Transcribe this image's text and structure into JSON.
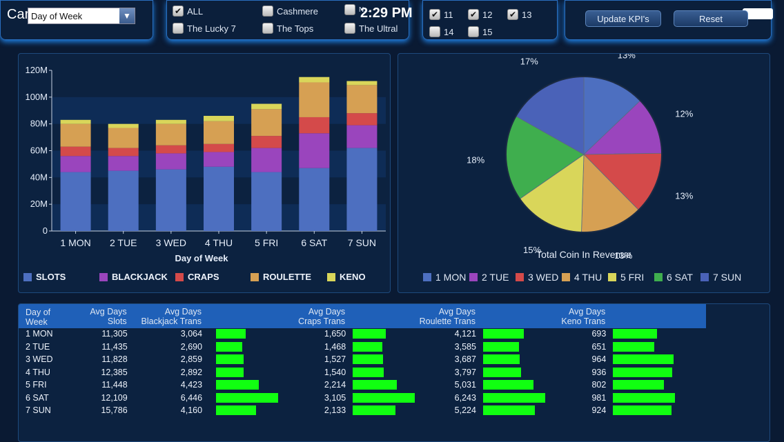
{
  "status_bar": {
    "carrier": "Carrier",
    "time": "2:29 PM"
  },
  "filters": {
    "group_by": {
      "selected": "Day of Week"
    },
    "games": [
      {
        "label": "ALL",
        "checked": true
      },
      {
        "label": "Cashmere",
        "checked": false
      },
      {
        "label": "N...",
        "checked": false
      },
      {
        "label": "The Lucky 7",
        "checked": false
      },
      {
        "label": "The Tops",
        "checked": false
      },
      {
        "label": "The Ultral",
        "checked": false
      }
    ],
    "numbers": [
      {
        "label": "11",
        "checked": true
      },
      {
        "label": "12",
        "checked": true
      },
      {
        "label": "13",
        "checked": true
      },
      {
        "label": "14",
        "checked": false
      },
      {
        "label": "15",
        "checked": false
      }
    ]
  },
  "actions": {
    "update_label": "Update KPI's",
    "reset_label": "Reset"
  },
  "colors": {
    "slots": "#4d6fc0",
    "blackjack": "#9a45bd",
    "craps": "#d44a4a",
    "roulette": "#d6a053",
    "keno": "#d9d65a",
    "green_bar": "#11ff11"
  },
  "chart_data": [
    {
      "type": "bar",
      "stacked": true,
      "xlabel": "Day of Week",
      "ylabel": "",
      "ylim": [
        0,
        120000000
      ],
      "y_tick_labels": [
        "0",
        "20M",
        "40M",
        "60M",
        "80M",
        "100M",
        "120M"
      ],
      "categories": [
        "1 MON",
        "2 TUE",
        "3 WED",
        "4 THU",
        "5 FRI",
        "6 SAT",
        "7 SUN"
      ],
      "series": [
        {
          "name": "SLOTS",
          "values": [
            44,
            45,
            46,
            48,
            44,
            47,
            62
          ]
        },
        {
          "name": "BLACKJACK",
          "values": [
            12,
            11,
            12,
            11,
            18,
            26,
            17
          ]
        },
        {
          "name": "CRAPS",
          "values": [
            7,
            6,
            6,
            6,
            9,
            12,
            9
          ]
        },
        {
          "name": "ROULETTE",
          "values": [
            17,
            15,
            16,
            17,
            20,
            26,
            21
          ]
        },
        {
          "name": "KENO",
          "values": [
            3,
            3,
            3,
            4,
            4,
            4,
            3
          ]
        }
      ],
      "unit": "M",
      "legend_position": "bottom"
    },
    {
      "type": "pie",
      "title": "Total Coin In Revenue",
      "categories": [
        "1 MON",
        "2 TUE",
        "3 WED",
        "4 THU",
        "5 FRI",
        "6 SAT",
        "7 SUN"
      ],
      "values": [
        13,
        12,
        13,
        13,
        15,
        18,
        17
      ],
      "labels": [
        "13%",
        "12%",
        "13%",
        "13%",
        "15%",
        "18%",
        "17%"
      ],
      "colors": [
        "#4d6fc0",
        "#9a45bd",
        "#d44a4a",
        "#d6a053",
        "#d9d65a",
        "#3fae4e",
        "#4a62b8"
      ],
      "legend_position": "bottom"
    }
  ],
  "table": {
    "headers": [
      {
        "top": "",
        "bottom": "Day of Week"
      },
      {
        "top": "Avg Days",
        "bottom": "Slots"
      },
      {
        "top": "Avg Days",
        "bottom": "Blackjack Trans"
      },
      {
        "top": "Avg Days",
        "bottom": "Craps Trans"
      },
      {
        "top": "Avg Days",
        "bottom": "Roulette Trans"
      },
      {
        "top": "Avg Days",
        "bottom": "Keno Trans"
      }
    ],
    "rows": [
      {
        "day": "1 MON",
        "slots": "11,305",
        "blackjack": "3,064",
        "craps": "1,650",
        "roulette": "4,121",
        "keno": "693"
      },
      {
        "day": "2 TUE",
        "slots": "11,435",
        "blackjack": "2,690",
        "craps": "1,468",
        "roulette": "3,585",
        "keno": "651"
      },
      {
        "day": "3 WED",
        "slots": "11,828",
        "blackjack": "2,859",
        "craps": "1,527",
        "roulette": "3,687",
        "keno": "964"
      },
      {
        "day": "4 THU",
        "slots": "12,385",
        "blackjack": "2,892",
        "craps": "1,540",
        "roulette": "3,797",
        "keno": "936"
      },
      {
        "day": "5 FRI",
        "slots": "11,448",
        "blackjack": "4,423",
        "craps": "2,214",
        "roulette": "5,031",
        "keno": "802"
      },
      {
        "day": "6 SAT",
        "slots": "12,109",
        "blackjack": "6,446",
        "craps": "3,105",
        "roulette": "6,243",
        "keno": "981"
      },
      {
        "day": "7 SUN",
        "slots": "15,786",
        "blackjack": "4,160",
        "craps": "2,133",
        "roulette": "5,224",
        "keno": "924"
      }
    ]
  }
}
